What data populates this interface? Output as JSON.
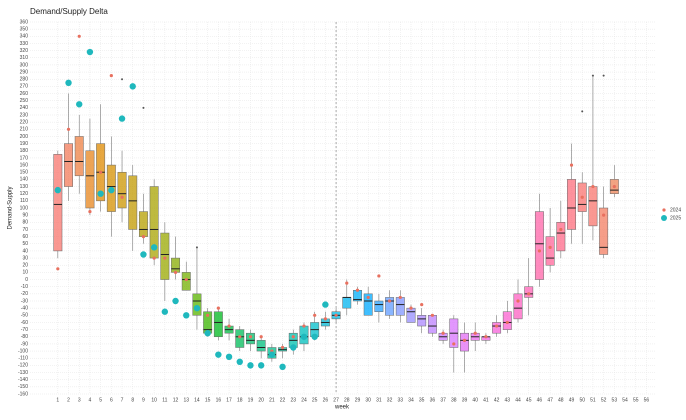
{
  "chart_data": {
    "type": "box",
    "title": "Demand/Supply Delta",
    "x_label": "week",
    "y_label": "Demand-Supply",
    "x": [
      1,
      2,
      3,
      4,
      5,
      6,
      7,
      8,
      9,
      10,
      11,
      12,
      13,
      14,
      15,
      16,
      17,
      18,
      19,
      20,
      21,
      22,
      23,
      24,
      25,
      26,
      27,
      28,
      29,
      30,
      31,
      32,
      33,
      34,
      35,
      36,
      37,
      38,
      39,
      40,
      41,
      42,
      43,
      44,
      45,
      46,
      47,
      48,
      49,
      50,
      51,
      52,
      53
    ],
    "boxes": {
      "whislo": [
        30,
        110,
        120,
        90,
        95,
        60,
        80,
        40,
        50,
        20,
        -30,
        0,
        -15,
        -70,
        -80,
        -85,
        -85,
        -100,
        -100,
        -110,
        -115,
        -110,
        -105,
        -100,
        -85,
        -70,
        -60,
        -50,
        -35,
        -50,
        -60,
        -55,
        -60,
        -60,
        -75,
        -80,
        -90,
        -130,
        -130,
        -100,
        -90,
        -80,
        -75,
        -60,
        -50,
        -10,
        10,
        30,
        50,
        50,
        55,
        30,
        115
      ],
      "q1": [
        40,
        130,
        145,
        100,
        110,
        95,
        100,
        70,
        60,
        30,
        0,
        10,
        -15,
        -50,
        -75,
        -80,
        -75,
        -95,
        -90,
        -100,
        -110,
        -100,
        -95,
        -90,
        -80,
        -65,
        -55,
        -40,
        -30,
        -50,
        -45,
        -50,
        -50,
        -60,
        -65,
        -75,
        -85,
        -95,
        -100,
        -85,
        -85,
        -75,
        -70,
        -55,
        -25,
        0,
        20,
        40,
        70,
        95,
        75,
        35,
        120
      ],
      "median": [
        105,
        165,
        165,
        145,
        150,
        130,
        120,
        110,
        70,
        70,
        35,
        15,
        0,
        -30,
        -70,
        -60,
        -70,
        -80,
        -85,
        -95,
        -105,
        -98,
        -85,
        -80,
        -70,
        -60,
        -50,
        -25,
        -28,
        -30,
        -35,
        -30,
        -35,
        -45,
        -55,
        -65,
        -80,
        -75,
        -85,
        -80,
        -80,
        -65,
        -60,
        -40,
        -20,
        50,
        30,
        65,
        100,
        105,
        110,
        45,
        125
      ],
      "q3": [
        175,
        190,
        200,
        180,
        190,
        160,
        150,
        145,
        95,
        130,
        65,
        30,
        10,
        -20,
        -45,
        -45,
        -65,
        -70,
        -75,
        -85,
        -95,
        -95,
        -75,
        -65,
        -60,
        -55,
        -45,
        -25,
        -15,
        -20,
        -30,
        -25,
        -25,
        -40,
        -50,
        -50,
        -75,
        -55,
        -75,
        -75,
        -80,
        -60,
        -45,
        -20,
        -10,
        95,
        60,
        80,
        140,
        135,
        130,
        100,
        140
      ],
      "whishi": [
        180,
        260,
        230,
        225,
        245,
        200,
        180,
        160,
        120,
        140,
        80,
        60,
        25,
        45,
        -40,
        -40,
        -55,
        -65,
        -70,
        -80,
        -90,
        -90,
        -70,
        -60,
        -45,
        -45,
        -40,
        0,
        -10,
        -10,
        -20,
        -15,
        -15,
        -35,
        -40,
        -50,
        -70,
        -50,
        -60,
        -60,
        -75,
        -50,
        -30,
        0,
        30,
        120,
        100,
        110,
        190,
        150,
        285,
        130,
        160
      ],
      "colors": [
        "#F8766D",
        "#F37B59",
        "#EE8043",
        "#E7851E",
        "#DF8A00",
        "#D69000",
        "#CC9500",
        "#C19A00",
        "#B59F00",
        "#A8A300",
        "#99A800",
        "#87AC00",
        "#73B000",
        "#5AB300",
        "#39B600",
        "#00B81F",
        "#00BA42",
        "#00BC59",
        "#00BE6C",
        "#00BF7D",
        "#00C08E",
        "#00C09E",
        "#00C0AD",
        "#00BFBC",
        "#00BDCA",
        "#00BBD7",
        "#00B8E3",
        "#00B4EF",
        "#00AFF8",
        "#00AAFF",
        "#2BA3FF",
        "#619CFF",
        "#7F96FF",
        "#978FFF",
        "#AC88FF",
        "#BD81FF",
        "#CC7AFF",
        "#D874FD",
        "#E36EF6",
        "#EB69EF",
        "#F264E6",
        "#F763DB",
        "#FB61D0",
        "#FE61C3",
        "#FF62B6",
        "#FF64A8",
        "#FF6699",
        "#FF6A8A",
        "#FD6E7C",
        "#FA7370",
        "#F8766D",
        "#F37D62",
        "#EE8458"
      ]
    },
    "series": [
      {
        "name": "2024",
        "color": "#e8705f",
        "values": [
          15,
          210,
          340,
          95,
          150,
          285,
          115,
          270,
          60,
          30,
          30,
          10,
          0,
          -40,
          -50,
          -40,
          -65,
          -80,
          -80,
          -80,
          -100,
          -95,
          -80,
          -65,
          -50,
          -55,
          -50,
          -5,
          -15,
          -25,
          5,
          -30,
          -25,
          -40,
          -35,
          -50,
          -75,
          -90,
          -85,
          -75,
          -80,
          -65,
          -60,
          -30,
          -20,
          40,
          45,
          70,
          160,
          115,
          130,
          90,
          130
        ]
      },
      {
        "name": "2025",
        "color": "#1fb8bd",
        "values": [
          125,
          275,
          245,
          318,
          120,
          125,
          225,
          270,
          35,
          45,
          -45,
          -30,
          -50,
          -40,
          -75,
          -105,
          -108,
          -115,
          -120,
          -120,
          -105,
          -122,
          -95,
          -80,
          -80,
          -35,
          null,
          null,
          null,
          null,
          null,
          null,
          null,
          null,
          null,
          null,
          null,
          null,
          null,
          null,
          null,
          null,
          null,
          null,
          null,
          null,
          null,
          null,
          null,
          null,
          null,
          null,
          null
        ]
      }
    ],
    "outliers": [
      {
        "x": 7,
        "value": 280
      },
      {
        "x": 9,
        "value": 240
      },
      {
        "x": 14,
        "value": 45
      },
      {
        "x": 50,
        "value": 235
      },
      {
        "x": 51,
        "value": 285
      },
      {
        "x": 52,
        "value": 285
      }
    ],
    "vline": 27,
    "xlim": [
      -1.6,
      56.8
    ],
    "ylim": [
      -160,
      360
    ],
    "xticks": [
      1,
      2,
      3,
      4,
      5,
      6,
      7,
      8,
      9,
      10,
      11,
      12,
      13,
      14,
      15,
      16,
      17,
      18,
      19,
      20,
      21,
      22,
      23,
      24,
      25,
      26,
      27,
      28,
      29,
      30,
      31,
      32,
      33,
      34,
      35,
      36,
      37,
      38,
      39,
      40,
      41,
      42,
      43,
      44,
      45,
      46,
      47,
      48,
      49,
      50,
      51,
      52,
      53,
      54,
      55,
      56
    ],
    "yticks": [
      -160,
      -150,
      -140,
      -130,
      -120,
      -110,
      -100,
      -90,
      -80,
      -70,
      -60,
      -50,
      -40,
      -30,
      -20,
      -10,
      0,
      10,
      20,
      30,
      40,
      50,
      60,
      70,
      80,
      90,
      100,
      110,
      120,
      130,
      140,
      150,
      160,
      170,
      180,
      190,
      200,
      210,
      220,
      230,
      240,
      250,
      260,
      270,
      280,
      290,
      300,
      310,
      320,
      330,
      340,
      350,
      360
    ],
    "grid": true,
    "legend": "right"
  }
}
